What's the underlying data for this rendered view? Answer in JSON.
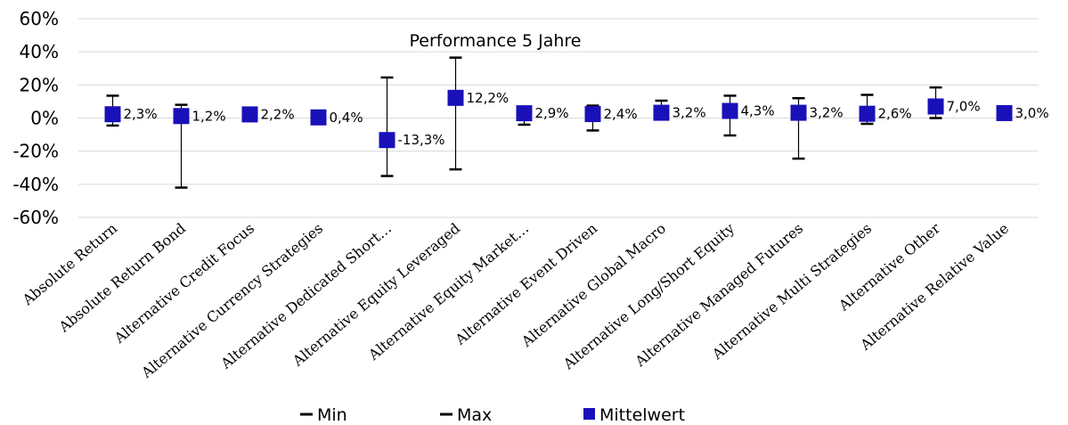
{
  "chart_data": {
    "type": "scatter",
    "title": "Performance 5 Jahre",
    "xlabel": "",
    "ylabel": "",
    "ylim": [
      -60,
      60
    ],
    "yticks": [
      "60%",
      "40%",
      "20%",
      "0%",
      "-20%",
      "-40%",
      "-60%"
    ],
    "grid": true,
    "legend_position": "bottom",
    "categories": [
      "Absolute Return",
      "Absolute Return Bond",
      "Alternative Credit Focus",
      "Alternative Currency Strategies",
      "Alternative Dedicated Short…",
      "Alternative Equity Leveraged",
      "Alternative Equity Market…",
      "Alternative Event Driven",
      "Alternative Global Macro",
      "Alternative Long/Short Equity",
      "Alternative Managed Futures",
      "Alternative Multi Strategies",
      "Alternative Other",
      "Alternative Relative Value"
    ],
    "series": [
      {
        "name": "Min",
        "values": [
          -4.5,
          -42,
          0.5,
          0,
          -35,
          -31,
          -4,
          -7.5,
          1,
          -10.5,
          -24.5,
          -3.5,
          0,
          1.5
        ]
      },
      {
        "name": "Max",
        "values": [
          13.5,
          8,
          4.5,
          1,
          24.5,
          36.5,
          4.5,
          7.5,
          10.5,
          13.5,
          12,
          14,
          18.5,
          4.5
        ]
      },
      {
        "name": "Mittelwert",
        "values": [
          2.3,
          1.2,
          2.2,
          0.4,
          -13.3,
          12.2,
          2.9,
          2.4,
          3.2,
          4.3,
          3.2,
          2.6,
          7.0,
          3.0
        ]
      }
    ],
    "data_labels": [
      "2,3%",
      "1,2%",
      "2,2%",
      "0,4%",
      "-13,3%",
      "12,2%",
      "2,9%",
      "2,4%",
      "3,2%",
      "4,3%",
      "3,2%",
      "2,6%",
      "7,0%",
      "3,0%"
    ],
    "colors": {
      "marker": "#1a10b8",
      "errorbar": "#000000",
      "grid": "#d9d9d9"
    }
  }
}
